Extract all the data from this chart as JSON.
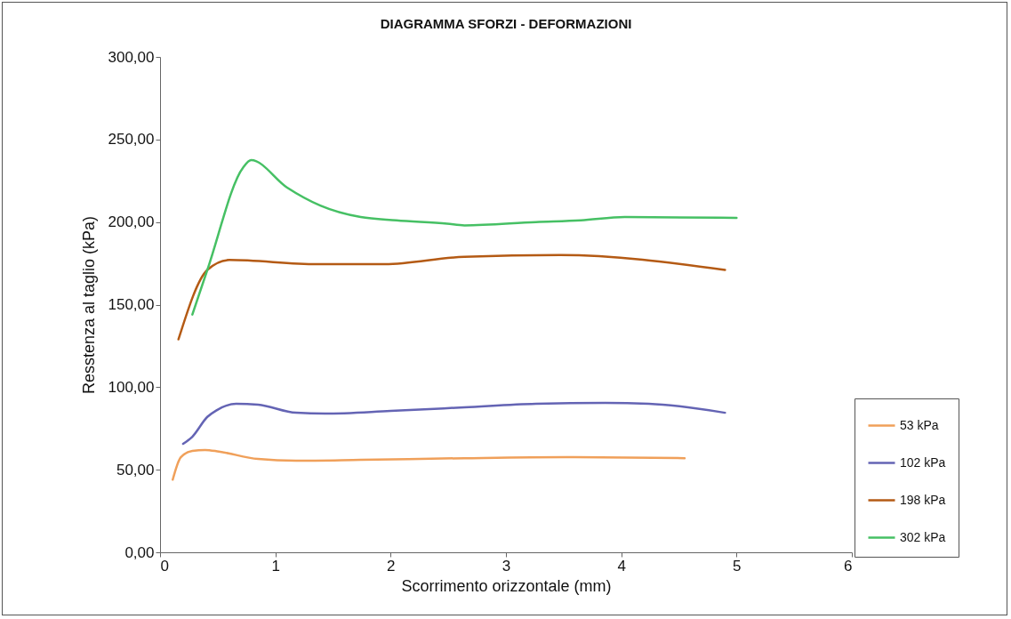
{
  "chart_data": {
    "type": "line",
    "title": "DIAGRAMMA SFORZI - DEFORMAZIONI",
    "xlabel": "Scorrimento orizzontale (mm)",
    "ylabel": "Resstenza al taglio (kPa)",
    "xlim": [
      0,
      6
    ],
    "xticks": [
      0,
      1,
      2,
      3,
      4,
      5,
      6
    ],
    "ylim": [
      0,
      300
    ],
    "yticks": [
      {
        "value": 0,
        "label": "0,00"
      },
      {
        "value": 50,
        "label": "50,00"
      },
      {
        "value": 100,
        "label": "100,00"
      },
      {
        "value": 150,
        "label": "150,00"
      },
      {
        "value": 200,
        "label": "200,00"
      },
      {
        "value": 250,
        "label": "250,00"
      },
      {
        "value": 300,
        "label": "300,00"
      }
    ],
    "grid": false,
    "legend": "right",
    "marker": "none",
    "line_style": "solid",
    "series": [
      {
        "name": "53 kPa",
        "color": "#f0a05a",
        "x": [
          0.11,
          0.18,
          0.28,
          0.39,
          0.51,
          0.85,
          1.18,
          1.74,
          2.64,
          3.52,
          4.55
        ],
        "values": [
          44,
          57.6,
          61.4,
          62,
          61,
          56.5,
          55.5,
          56,
          57,
          57.6,
          57
        ]
      },
      {
        "name": "102 kPa",
        "color": "#6464b4",
        "x": [
          0.2,
          0.28,
          0.41,
          0.49,
          0.66,
          0.85,
          1.18,
          1.43,
          2.0,
          2.64,
          3.26,
          3.86,
          4.24,
          4.9
        ],
        "values": [
          65.7,
          70,
          82,
          86,
          90,
          89.4,
          84.5,
          84,
          85.6,
          87.8,
          90,
          90.5,
          90,
          84.5
        ]
      },
      {
        "name": "198 kPa",
        "color": "#b45a14",
        "x": [
          0.16,
          0.41,
          0.6,
          1.36,
          1.95,
          2.64,
          3.47,
          4.9
        ],
        "values": [
          129,
          171,
          177,
          174.5,
          174.5,
          179,
          180,
          171
        ]
      },
      {
        "name": "302 kPa",
        "color": "#46c064",
        "x": [
          0.28,
          0.41,
          0.72,
          0.79,
          1.1,
          1.39,
          1.74,
          2.05,
          2.49,
          2.64,
          3.26,
          3.65,
          4.03,
          5.0
        ],
        "values": [
          144,
          171,
          233,
          237.5,
          221,
          210,
          203,
          201,
          199,
          198,
          200,
          201,
          203,
          202.5
        ]
      }
    ]
  }
}
